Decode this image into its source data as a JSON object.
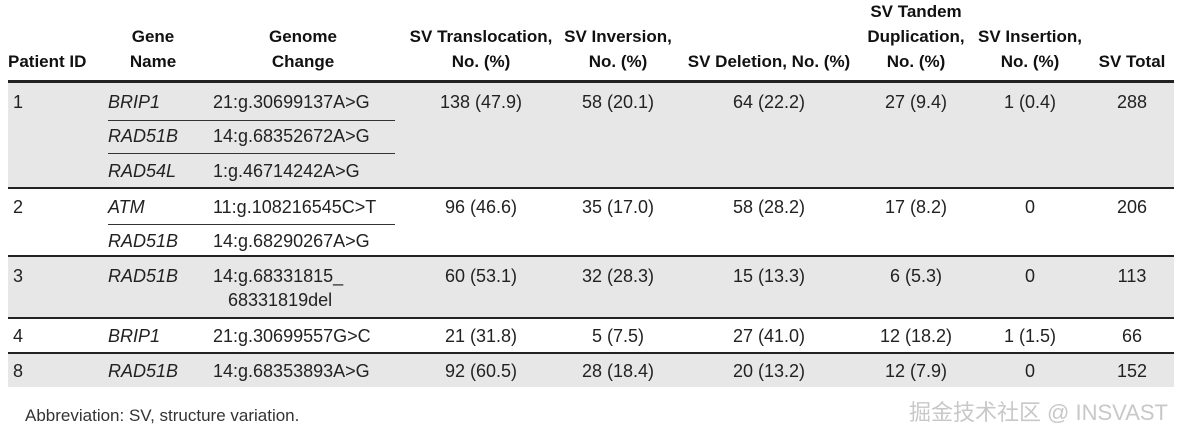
{
  "table": {
    "headers": {
      "patient_id": [
        "Patient ID"
      ],
      "gene_name": [
        "Gene",
        "Name"
      ],
      "genome_change": [
        "Genome",
        "Change"
      ],
      "sv_translocation": [
        "SV Translocation,",
        "No. (%)"
      ],
      "sv_inversion": [
        "SV Inversion,",
        "No. (%)"
      ],
      "sv_deletion": [
        "SV Deletion, No. (%)"
      ],
      "sv_tandem_duplication": [
        "SV Tandem",
        "Duplication,",
        "No. (%)"
      ],
      "sv_insertion": [
        "SV Insertion,",
        "No. (%)"
      ],
      "sv_total": [
        "SV Total"
      ]
    },
    "rows": [
      {
        "patient_id": "1",
        "genes": [
          {
            "name": "BRIP1",
            "change": [
              "21:g.30699137A>G"
            ]
          },
          {
            "name": "RAD51B",
            "change": [
              "14:g.68352672A>G"
            ]
          },
          {
            "name": "RAD54L",
            "change": [
              "1:g.46714242A>G"
            ]
          }
        ],
        "translocation": "138 (47.9)",
        "inversion": "58 (20.1)",
        "deletion": "64 (22.2)",
        "tandem_duplication": "27 (9.4)",
        "insertion": "1 (0.4)",
        "total": "288"
      },
      {
        "patient_id": "2",
        "genes": [
          {
            "name": "ATM",
            "change": [
              "11:g.108216545C>T"
            ]
          },
          {
            "name": "RAD51B",
            "change": [
              "14:g.68290267A>G"
            ]
          }
        ],
        "translocation": "96 (46.6)",
        "inversion": "35 (17.0)",
        "deletion": "58 (28.2)",
        "tandem_duplication": "17 (8.2)",
        "insertion": "0",
        "total": "206"
      },
      {
        "patient_id": "3",
        "genes": [
          {
            "name": "RAD51B",
            "change": [
              "14:g.68331815_",
              "68331819del"
            ]
          }
        ],
        "translocation": "60 (53.1)",
        "inversion": "32 (28.3)",
        "deletion": "15 (13.3)",
        "tandem_duplication": "6 (5.3)",
        "insertion": "0",
        "total": "113"
      },
      {
        "patient_id": "4",
        "genes": [
          {
            "name": "BRIP1",
            "change": [
              "21:g.30699557G>C"
            ]
          }
        ],
        "translocation": "21 (31.8)",
        "inversion": "5 (7.5)",
        "deletion": "27 (41.0)",
        "tandem_duplication": "12 (18.2)",
        "insertion": "1 (1.5)",
        "total": "66"
      },
      {
        "patient_id": "8",
        "genes": [
          {
            "name": "RAD51B",
            "change": [
              "14:g.68353893A>G"
            ]
          }
        ],
        "translocation": "92 (60.5)",
        "inversion": "28 (18.4)",
        "deletion": "20 (13.2)",
        "tandem_duplication": "12 (7.9)",
        "insertion": "0",
        "total": "152"
      }
    ]
  },
  "footnote": "Abbreviation: SV, structure variation.",
  "watermark": "掘金技术社区 @ INSVAST",
  "colors": {
    "shaded_row": "#e7e7e7",
    "rule": "#222222",
    "text": "#222222"
  }
}
